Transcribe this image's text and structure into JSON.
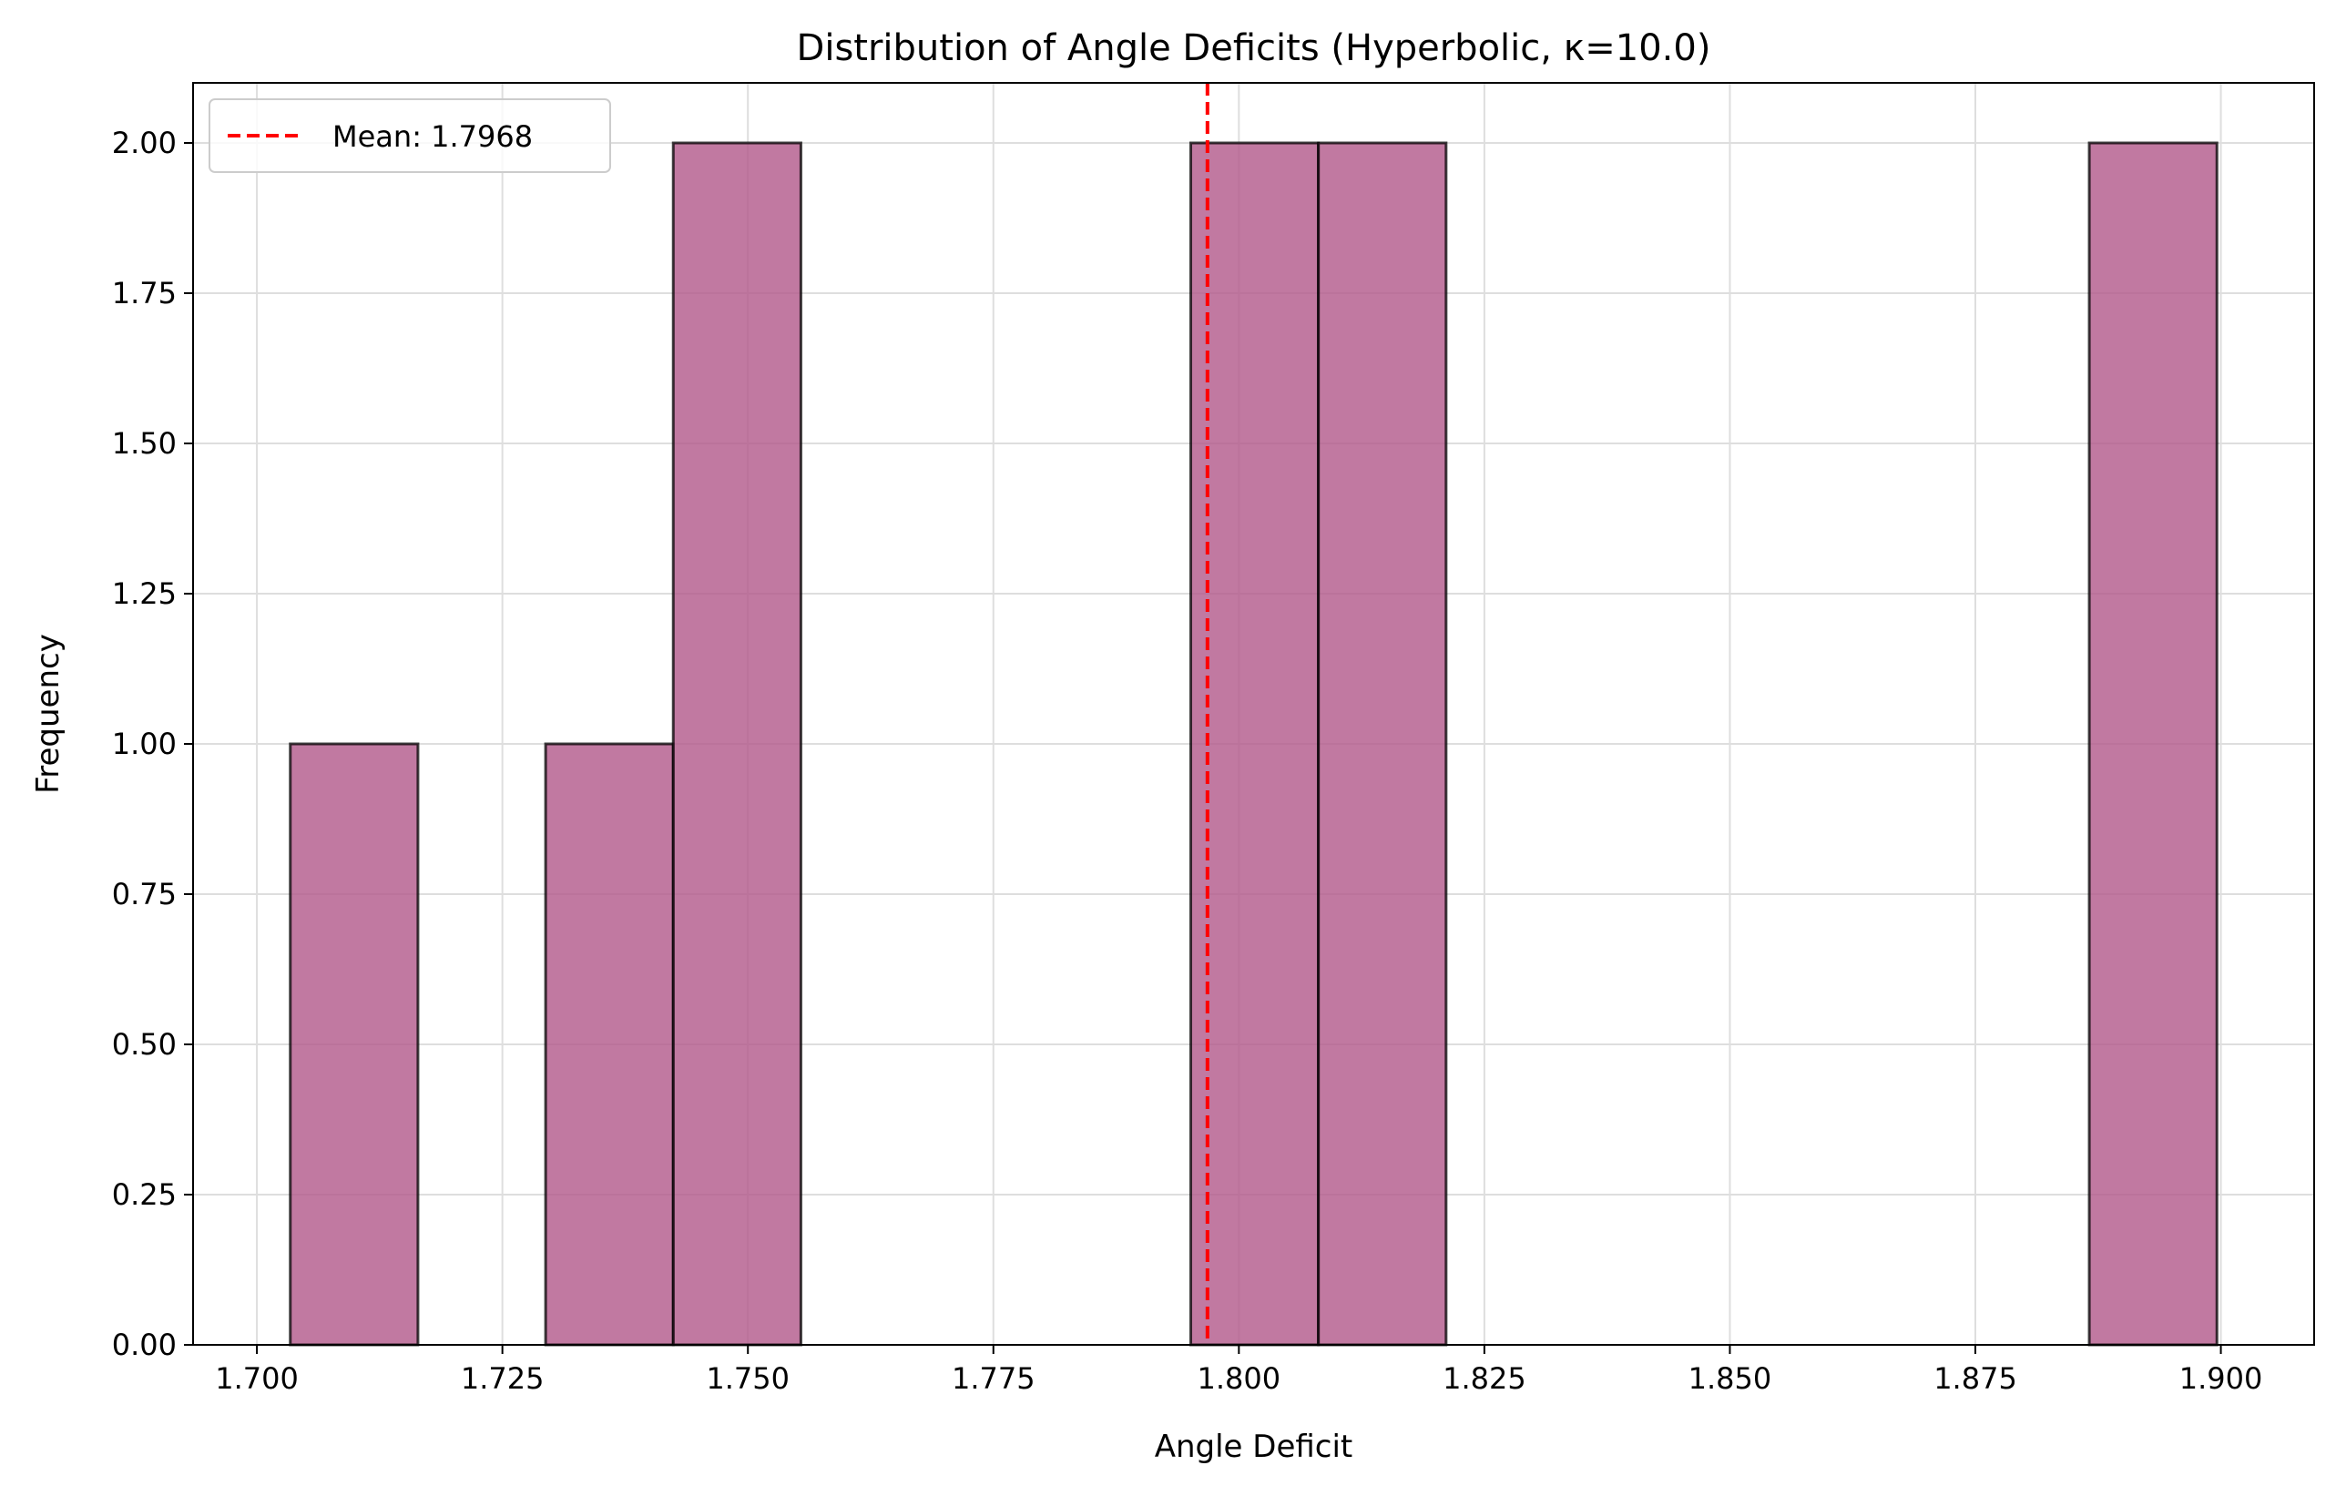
{
  "chart_data": {
    "type": "bar",
    "title": "Distribution of Angle Deficits (Hyperbolic, κ=10.0)",
    "xlabel": "Angle Deficit",
    "ylabel": "Frequency",
    "xlim": [
      1.6935,
      1.9095
    ],
    "ylim": [
      0,
      2.1
    ],
    "x_ticks": [
      1.7,
      1.725,
      1.75,
      1.775,
      1.8,
      1.825,
      1.85,
      1.875,
      1.9
    ],
    "x_tick_labels": [
      "1.700",
      "1.725",
      "1.750",
      "1.775",
      "1.800",
      "1.825",
      "1.850",
      "1.875",
      "1.900"
    ],
    "y_ticks": [
      0,
      0.25,
      0.5,
      0.75,
      1.0,
      1.25,
      1.5,
      1.75,
      2.0
    ],
    "y_tick_labels": [
      "0.00",
      "0.25",
      "0.50",
      "0.75",
      "1.00",
      "1.25",
      "1.50",
      "1.75",
      "2.00"
    ],
    "bins": [
      {
        "x0": 1.7034,
        "x1": 1.7164,
        "count": 1
      },
      {
        "x0": 1.7294,
        "x1": 1.7424,
        "count": 1
      },
      {
        "x0": 1.7424,
        "x1": 1.7554,
        "count": 2
      },
      {
        "x0": 1.7951,
        "x1": 1.8081,
        "count": 2
      },
      {
        "x0": 1.8081,
        "x1": 1.8211,
        "count": 2
      },
      {
        "x0": 1.8866,
        "x1": 1.8996,
        "count": 2
      }
    ],
    "bar_color": "#b1578a",
    "bar_edge_color": "#000000",
    "grid": true,
    "mean_line": {
      "value": 1.7968,
      "color": "#ff0000",
      "style": "dashed",
      "label": "Mean: 1.7968"
    },
    "legend": {
      "position": "top-left",
      "entries": [
        "Mean: 1.7968"
      ]
    }
  }
}
